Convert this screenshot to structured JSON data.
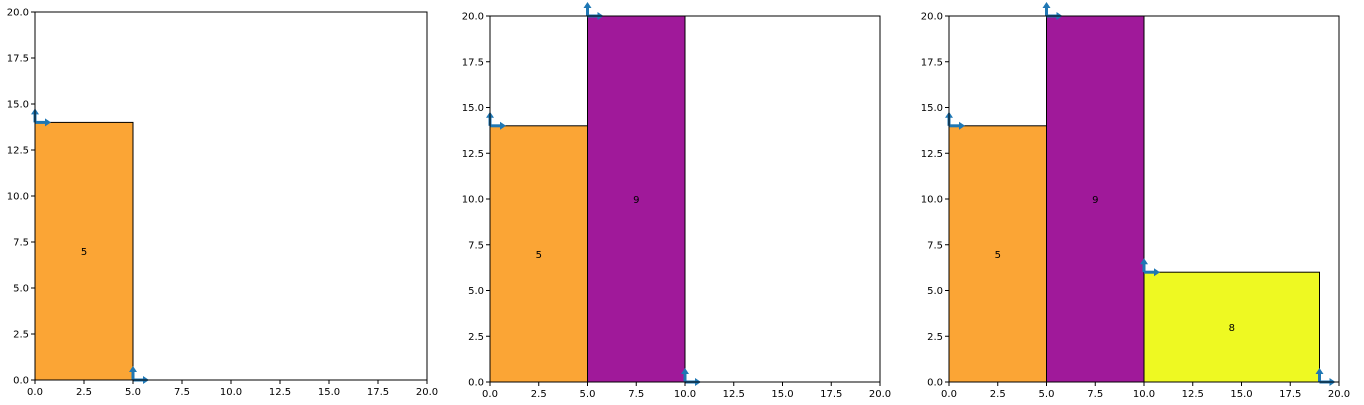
{
  "chart_data": [
    {
      "type": "rectangle-packing",
      "xlim": [
        0,
        20
      ],
      "ylim": [
        0,
        20
      ],
      "xticks": [
        "0.0",
        "2.5",
        "5.0",
        "7.5",
        "10.0",
        "12.5",
        "15.0",
        "17.5",
        "20.0"
      ],
      "yticks": [
        "0.0",
        "2.5",
        "5.0",
        "7.5",
        "10.0",
        "12.5",
        "15.0",
        "17.5",
        "20.0"
      ],
      "rectangles": [
        {
          "label": "5",
          "x": 0,
          "y": 0,
          "width": 5,
          "height": 14,
          "color": "#FBA535"
        }
      ],
      "anchors": [
        {
          "x": 0,
          "y": 14
        },
        {
          "x": 5,
          "y": 0
        }
      ]
    },
    {
      "type": "rectangle-packing",
      "xlim": [
        0,
        20
      ],
      "ylim": [
        0,
        20
      ],
      "xticks": [
        "0.0",
        "2.5",
        "5.0",
        "7.5",
        "10.0",
        "12.5",
        "15.0",
        "17.5",
        "20.0"
      ],
      "yticks": [
        "0.0",
        "2.5",
        "5.0",
        "7.5",
        "10.0",
        "12.5",
        "15.0",
        "17.5",
        "20.0"
      ],
      "rectangles": [
        {
          "label": "5",
          "x": 0,
          "y": 0,
          "width": 5,
          "height": 14,
          "color": "#FBA535"
        },
        {
          "label": "9",
          "x": 5,
          "y": 0,
          "width": 5,
          "height": 20,
          "color": "#A0199A"
        }
      ],
      "anchors": [
        {
          "x": 0,
          "y": 14
        },
        {
          "x": 5,
          "y": 20
        },
        {
          "x": 10,
          "y": 0
        }
      ]
    },
    {
      "type": "rectangle-packing",
      "xlim": [
        0,
        20
      ],
      "ylim": [
        0,
        20
      ],
      "xticks": [
        "0.0",
        "2.5",
        "5.0",
        "7.5",
        "10.0",
        "12.5",
        "15.0",
        "17.5",
        "20.0"
      ],
      "yticks": [
        "0.0",
        "2.5",
        "5.0",
        "7.5",
        "10.0",
        "12.5",
        "15.0",
        "17.5",
        "20.0"
      ],
      "rectangles": [
        {
          "label": "5",
          "x": 0,
          "y": 0,
          "width": 5,
          "height": 14,
          "color": "#FBA535"
        },
        {
          "label": "9",
          "x": 5,
          "y": 0,
          "width": 5,
          "height": 20,
          "color": "#A0199A"
        },
        {
          "label": "8",
          "x": 10,
          "y": 0,
          "width": 9,
          "height": 6,
          "color": "#EEF922"
        }
      ],
      "anchors": [
        {
          "x": 0,
          "y": 14
        },
        {
          "x": 5,
          "y": 20
        },
        {
          "x": 10,
          "y": 6
        },
        {
          "x": 19,
          "y": 0
        }
      ]
    }
  ],
  "anchor_color": "#1F77B4",
  "edge_color": "#000000"
}
